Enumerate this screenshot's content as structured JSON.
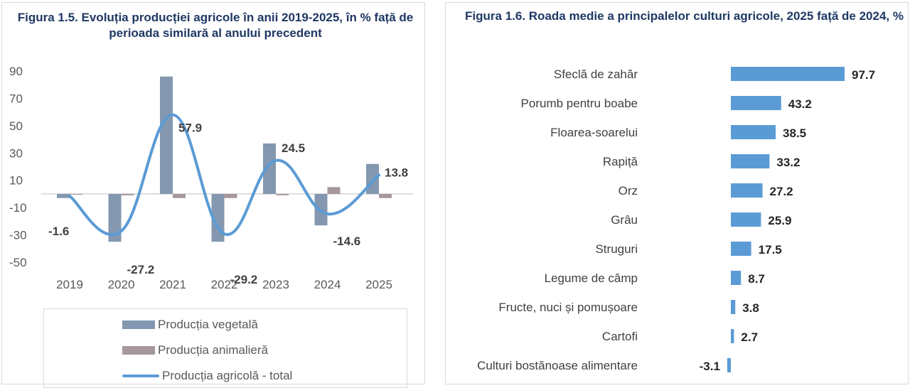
{
  "chart_data": [
    {
      "type": "bar",
      "title": "Figura 1.5. Evoluția producției agricole în anii 2019-2025, în % față de perioada similară al anului precedent",
      "categories": [
        "2019",
        "2020",
        "2021",
        "2022",
        "2023",
        "2024",
        "2025"
      ],
      "ylim": [
        -50,
        90
      ],
      "yticks": [
        90,
        70,
        50,
        30,
        10,
        -10,
        -30,
        -50
      ],
      "series": [
        {
          "name": "Producția vegetală",
          "type": "bar",
          "color": "#8497b0",
          "values": [
            -3,
            -35,
            86,
            -35,
            37,
            -23,
            22
          ]
        },
        {
          "name": "Producția animalieră",
          "type": "bar",
          "color": "#a6979c",
          "values": [
            0,
            -1,
            -3,
            -3,
            -1,
            5,
            -3
          ]
        },
        {
          "name": "Producția  agricolă - total",
          "type": "line",
          "color": "#5b9bd5",
          "values": [
            -1.6,
            -27.2,
            57.9,
            -29.2,
            24.5,
            -14.6,
            13.8
          ]
        }
      ],
      "data_labels": [
        "-1.6",
        "-27.2",
        "57.9",
        "-29.2",
        "24.5",
        "-14.6",
        "13.8"
      ],
      "legend": "bottom"
    },
    {
      "type": "bar",
      "orientation": "horizontal",
      "title": "Figura 1.6. Roada medie a principalelor culturi agricole, 2025 față de 2024, %",
      "categories": [
        "Sfeclă de zahăr",
        "Porumb pentru boabe",
        "Floarea-soarelui",
        "Rapiță",
        "Orz",
        "Grâu",
        "Struguri",
        "Legume de câmp",
        "Fructe, nuci și pomușoare",
        "Cartofi",
        "Culturi bostănoase alimentare"
      ],
      "values": [
        97.7,
        43.2,
        38.5,
        33.2,
        27.2,
        25.9,
        17.5,
        8.7,
        3.8,
        2.7,
        -3.1
      ],
      "data_labels": [
        "97.7",
        "43.2",
        "38.5",
        "33.2",
        "27.2",
        "25.9",
        "17.5",
        "8.7",
        "3.8",
        "2.7",
        "-3.1"
      ],
      "color": "#5b9bd5"
    }
  ]
}
